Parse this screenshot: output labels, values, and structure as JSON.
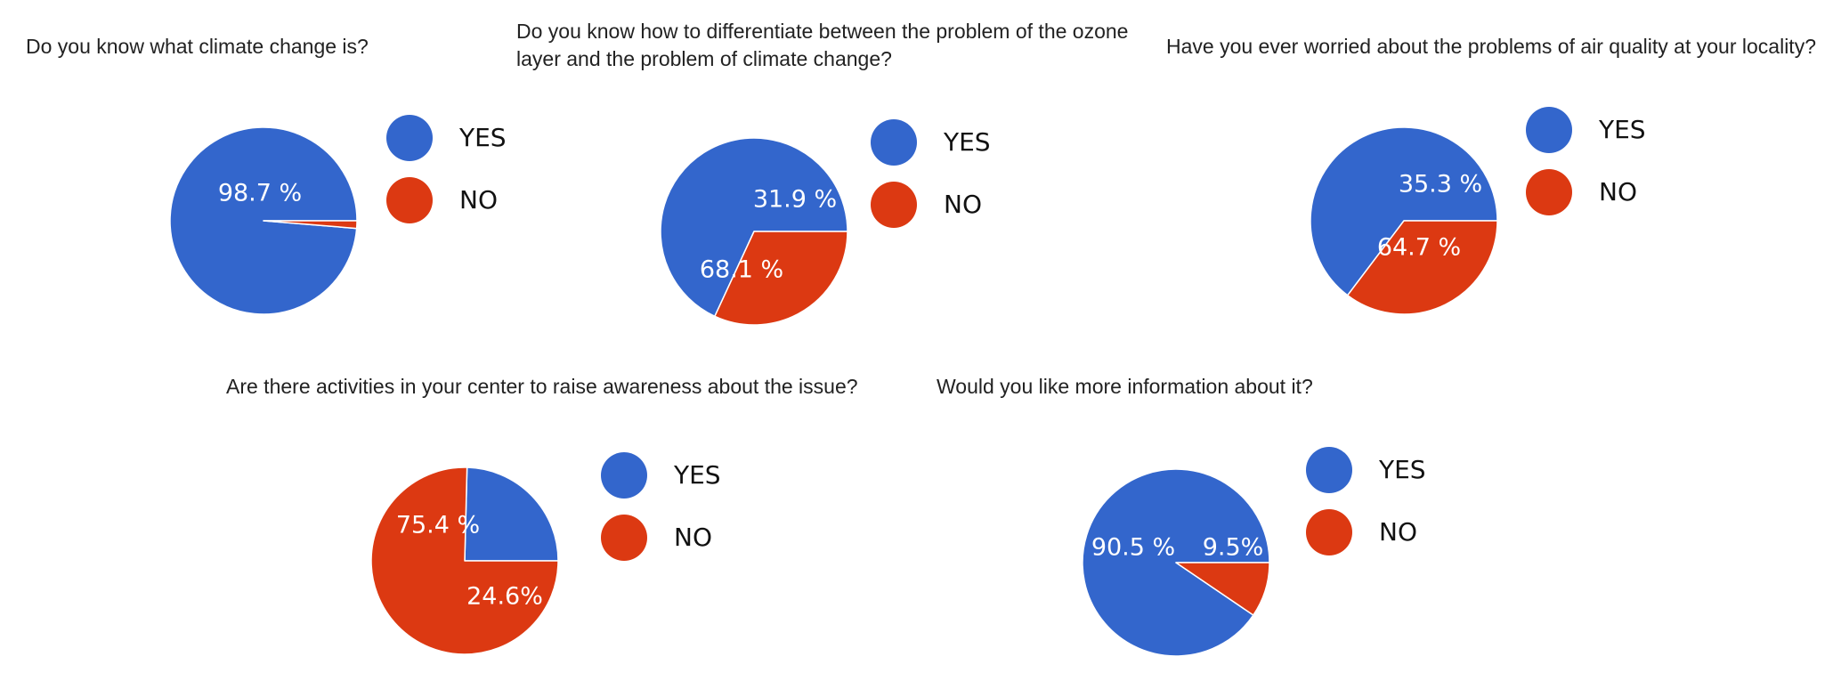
{
  "colors": {
    "yes": "#3366cc",
    "no": "#dc3912"
  },
  "chart_data": [
    {
      "type": "pie",
      "title": "Do you know what climate change is?",
      "categories": [
        "YES",
        "NO"
      ],
      "values": [
        98.7,
        1.3
      ],
      "labels": [
        "98.7 %",
        ""
      ],
      "legend": [
        "YES",
        "NO"
      ],
      "legend_position": "right"
    },
    {
      "type": "pie",
      "title": "Do you know how to differentiate between the problem of the ozone layer and the problem of climate change?",
      "title_lines": [
        "Do you know how to differentiate between the problem of the ozone",
        "layer and the problem of climate change?"
      ],
      "categories": [
        "YES",
        "NO"
      ],
      "values": [
        68.1,
        31.9
      ],
      "labels": [
        "68.1 %",
        "31.9 %"
      ],
      "legend": [
        "YES",
        "NO"
      ],
      "legend_position": "right"
    },
    {
      "type": "pie",
      "title": "Have you ever worried about the problems of air quality at your locality?",
      "categories": [
        "YES",
        "NO"
      ],
      "values": [
        64.7,
        35.3
      ],
      "labels": [
        "64.7 %",
        "35.3 %"
      ],
      "legend": [
        "YES",
        "NO"
      ],
      "legend_position": "right"
    },
    {
      "type": "pie",
      "title": "Are there activities in your center to raise awareness about the issue?",
      "categories": [
        "YES",
        "NO"
      ],
      "values": [
        24.6,
        75.4
      ],
      "labels": [
        "24.6%",
        "75.4 %"
      ],
      "legend": [
        "YES",
        "NO"
      ],
      "legend_position": "right"
    },
    {
      "type": "pie",
      "title": "Would you like more information about it?",
      "categories": [
        "YES",
        "NO"
      ],
      "values": [
        90.5,
        9.5
      ],
      "labels": [
        "90.5 %",
        "9.5%"
      ],
      "legend": [
        "YES",
        "NO"
      ],
      "legend_position": "right"
    }
  ]
}
